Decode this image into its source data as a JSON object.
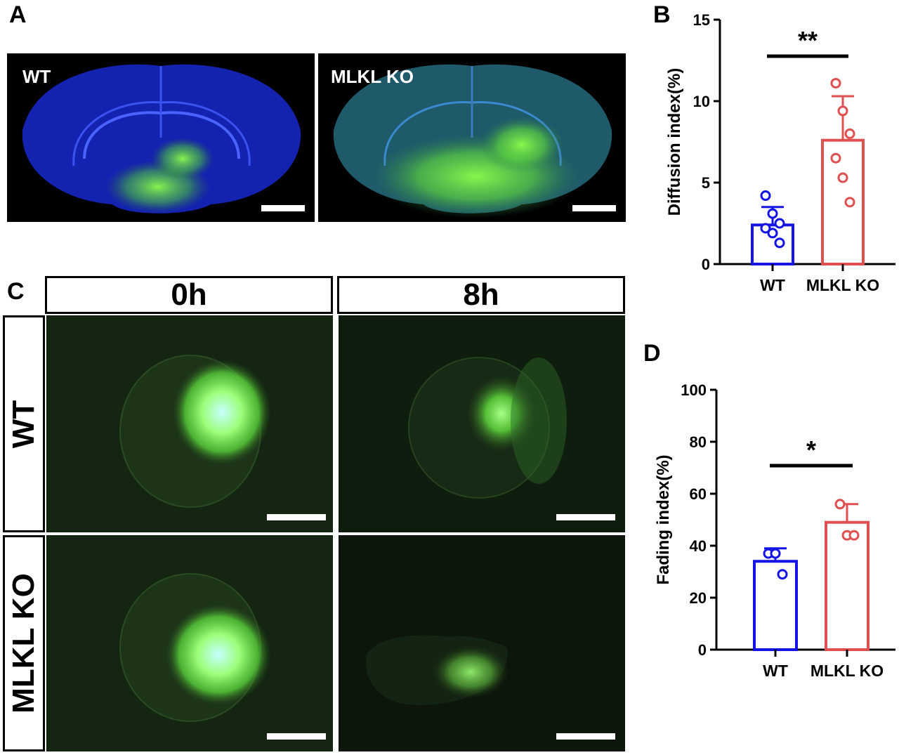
{
  "panels": {
    "a": {
      "letter": "A",
      "left_label": "WT",
      "right_label": "MLKL KO"
    },
    "b": {
      "letter": "B"
    },
    "c": {
      "letter": "C",
      "col_headers": [
        "0h",
        "8h"
      ],
      "row_headers": [
        "WT",
        "MLKL KO"
      ]
    },
    "d": {
      "letter": "D"
    }
  },
  "colors": {
    "wt": "#1414e6",
    "ko": "#e05050",
    "fluor": "#7cff3a",
    "nuclear": "#1f36d6"
  },
  "chart_data": [
    {
      "type": "bar",
      "panel": "B",
      "categories": [
        "WT",
        "MLKL KO"
      ],
      "values": [
        2.4,
        7.6
      ],
      "error": [
        1.1,
        2.7
      ],
      "points": [
        [
          4.2,
          3.1,
          2.5,
          2.2,
          1.9,
          1.3
        ],
        [
          11.1,
          9.4,
          8.0,
          6.5,
          5.3,
          3.8
        ]
      ],
      "ylabel": "Diffusion index(%)",
      "ylim": [
        0,
        15
      ],
      "yticks": [
        0,
        5,
        10,
        15
      ],
      "significance": "**",
      "grid": false
    },
    {
      "type": "bar",
      "panel": "D",
      "categories": [
        "WT",
        "MLKL KO"
      ],
      "values": [
        34,
        49
      ],
      "error": [
        5,
        7
      ],
      "points": [
        [
          37,
          37,
          29
        ],
        [
          56,
          44,
          44
        ]
      ],
      "ylabel": "Fading index(%)",
      "ylim": [
        0,
        100
      ],
      "yticks": [
        0,
        20,
        40,
        60,
        80,
        100
      ],
      "significance": "*",
      "grid": false
    }
  ]
}
